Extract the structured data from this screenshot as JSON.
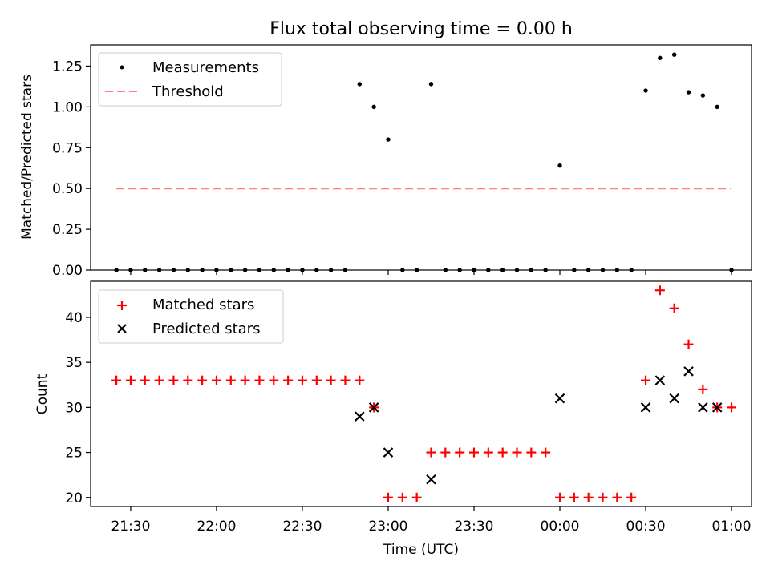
{
  "chart_data": [
    {
      "type": "scatter",
      "title": "Flux total observing time = 0.00 h",
      "ylabel": "Matched/Predicted stars",
      "xlabel": "",
      "ylim": [
        0,
        1.38
      ],
      "yticks": [
        "0.00",
        "0.25",
        "0.50",
        "0.75",
        "1.00",
        "1.25"
      ],
      "legend_position": "top-left",
      "series": [
        {
          "name": "Measurements",
          "marker": "dot",
          "color": "#000000",
          "x": [
            "21:25",
            "21:30",
            "21:35",
            "21:40",
            "21:45",
            "21:50",
            "21:55",
            "22:00",
            "22:05",
            "22:10",
            "22:15",
            "22:20",
            "22:25",
            "22:30",
            "22:35",
            "22:40",
            "22:45",
            "22:50",
            "22:55",
            "23:00",
            "23:05",
            "23:10",
            "23:15",
            "23:20",
            "23:25",
            "23:30",
            "23:35",
            "23:40",
            "23:45",
            "23:50",
            "23:55",
            "00:00",
            "00:05",
            "00:10",
            "00:15",
            "00:20",
            "00:25",
            "00:30",
            "00:35",
            "00:40",
            "00:45",
            "00:50",
            "00:55",
            "01:00"
          ],
          "y": [
            0,
            0,
            0,
            0,
            0,
            0,
            0,
            0,
            0,
            0,
            0,
            0,
            0,
            0,
            0,
            0,
            0,
            1.14,
            1.0,
            0.8,
            0,
            0,
            1.14,
            0,
            0,
            0,
            0,
            0,
            0,
            0,
            0,
            0.64,
            0,
            0,
            0,
            0,
            0,
            1.1,
            1.3,
            1.32,
            1.09,
            1.07,
            1.0,
            0
          ]
        },
        {
          "name": "Threshold",
          "marker": "dashed-line",
          "color": "#ff7f7f",
          "x": [
            "21:25",
            "01:00"
          ],
          "y": [
            0.5,
            0.5
          ]
        }
      ]
    },
    {
      "type": "scatter",
      "title": "",
      "xlabel": "Time (UTC)",
      "ylabel": "Count",
      "ylim": [
        19,
        44
      ],
      "yticks": [
        "20",
        "25",
        "30",
        "35",
        "40"
      ],
      "xticks": [
        "21:30",
        "22:00",
        "22:30",
        "23:00",
        "23:30",
        "00:00",
        "00:30",
        "01:00"
      ],
      "legend_position": "top-left",
      "series": [
        {
          "name": "Matched stars",
          "marker": "plus",
          "color": "#ff0000",
          "x": [
            "21:25",
            "21:30",
            "21:35",
            "21:40",
            "21:45",
            "21:50",
            "21:55",
            "22:00",
            "22:05",
            "22:10",
            "22:15",
            "22:20",
            "22:25",
            "22:30",
            "22:35",
            "22:40",
            "22:45",
            "22:50",
            "22:55",
            "23:00",
            "23:05",
            "23:10",
            "23:15",
            "23:20",
            "23:25",
            "23:30",
            "23:35",
            "23:40",
            "23:45",
            "23:50",
            "23:55",
            "00:00",
            "00:05",
            "00:10",
            "00:15",
            "00:20",
            "00:25",
            "00:30",
            "00:35",
            "00:40",
            "00:45",
            "00:50",
            "00:55",
            "01:00"
          ],
          "y": [
            33,
            33,
            33,
            33,
            33,
            33,
            33,
            33,
            33,
            33,
            33,
            33,
            33,
            33,
            33,
            33,
            33,
            33,
            30,
            20,
            20,
            20,
            25,
            25,
            25,
            25,
            25,
            25,
            25,
            25,
            25,
            20,
            20,
            20,
            20,
            20,
            20,
            33,
            43,
            41,
            37,
            32,
            30,
            30
          ]
        },
        {
          "name": "Predicted stars",
          "marker": "x",
          "color": "#000000",
          "x": [
            "22:50",
            "22:55",
            "23:00",
            "23:15",
            "00:00",
            "00:30",
            "00:35",
            "00:40",
            "00:45",
            "00:50",
            "00:55"
          ],
          "y": [
            29,
            30,
            25,
            22,
            31,
            30,
            33,
            31,
            34,
            30,
            30
          ]
        }
      ]
    }
  ]
}
